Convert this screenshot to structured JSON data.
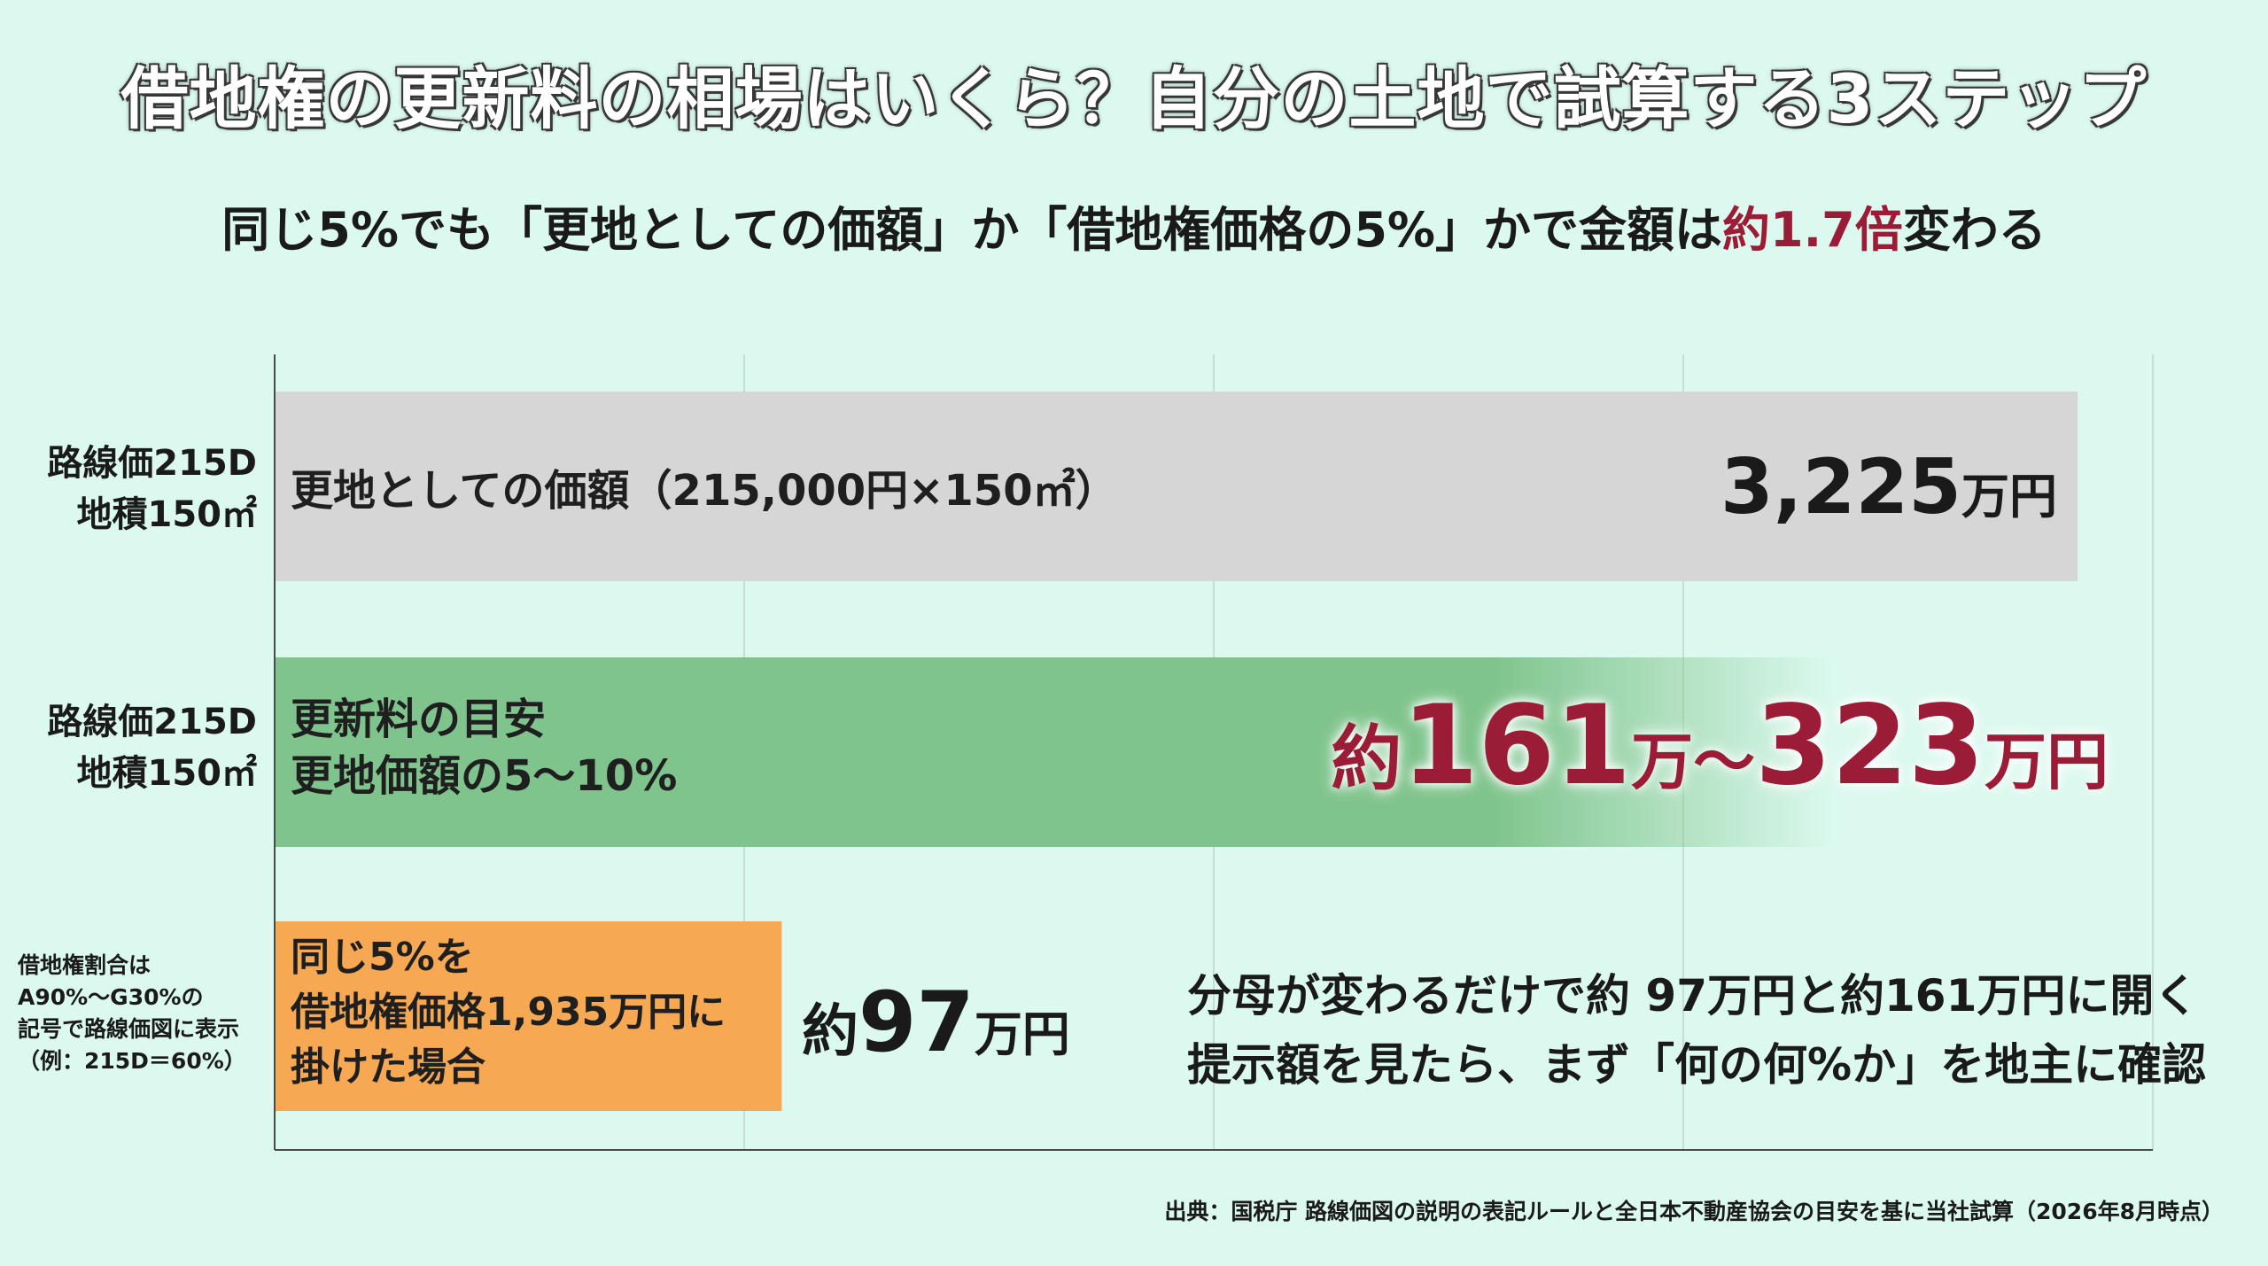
{
  "title": "借地権の更新料の相場はいくら？自分の土地で試算する3ステップ",
  "subtitle": {
    "before": "同じ5%でも「更地としての価額」か「借地権価格の5%」かで金額は",
    "accent": "約1.7倍",
    "after": "変わる"
  },
  "colors": {
    "background": "#dbf9ee",
    "bar_gray": "#d6d6d6",
    "bar_green": "#7fc48c",
    "bar_orange": "#f6a853",
    "accent": "#9b1c36"
  },
  "chart_data": {
    "type": "bar",
    "orientation": "horizontal",
    "unit": "万円",
    "grid": true,
    "categories": [
      "更地としての価額",
      "更新料の目安",
      "借地権価格の5%"
    ],
    "values": [
      3225,
      323,
      97
    ],
    "rows": [
      {
        "left_label_line1": "路線価215D",
        "left_label_line2": "地積150㎡",
        "bar_label_line1": "更地としての価額（215,000円×150㎡）",
        "value": "3,225",
        "unit": "万円",
        "fill": 0.96
      },
      {
        "left_label_line1": "路線価215D",
        "left_label_line2": "地積150㎡",
        "bar_label_line1": "更新料の目安",
        "bar_label_line2": "更地価額の5〜10%",
        "value_prefix": "約",
        "value_low": "161",
        "value_sep": "万〜",
        "value_high": "323",
        "unit": "万円",
        "fill": 0.83
      },
      {
        "left_small_line1": "借地権割合は",
        "left_small_line2": "A90%〜G30%の",
        "left_small_line3": "記号で路線価図に表示",
        "left_small_line4": "（例：215D＝60%）",
        "bar_label_line1": "同じ5%を",
        "bar_label_line2": "借地権価格1,935万円に",
        "bar_label_line3": "掛けた場合",
        "value_prefix": "約",
        "value": "97",
        "unit": "万円",
        "fill": 0.27
      }
    ]
  },
  "note": {
    "line1": "分母が変わるだけで約 97万円と約161万円に開く",
    "line2": "提示額を見たら、まず「何の何%か」を地主に確認"
  },
  "source": "出典：国税庁 路線価図の説明の表記ルールと全日本不動産協会の目安を基に当社試算（2026年8月時点）"
}
